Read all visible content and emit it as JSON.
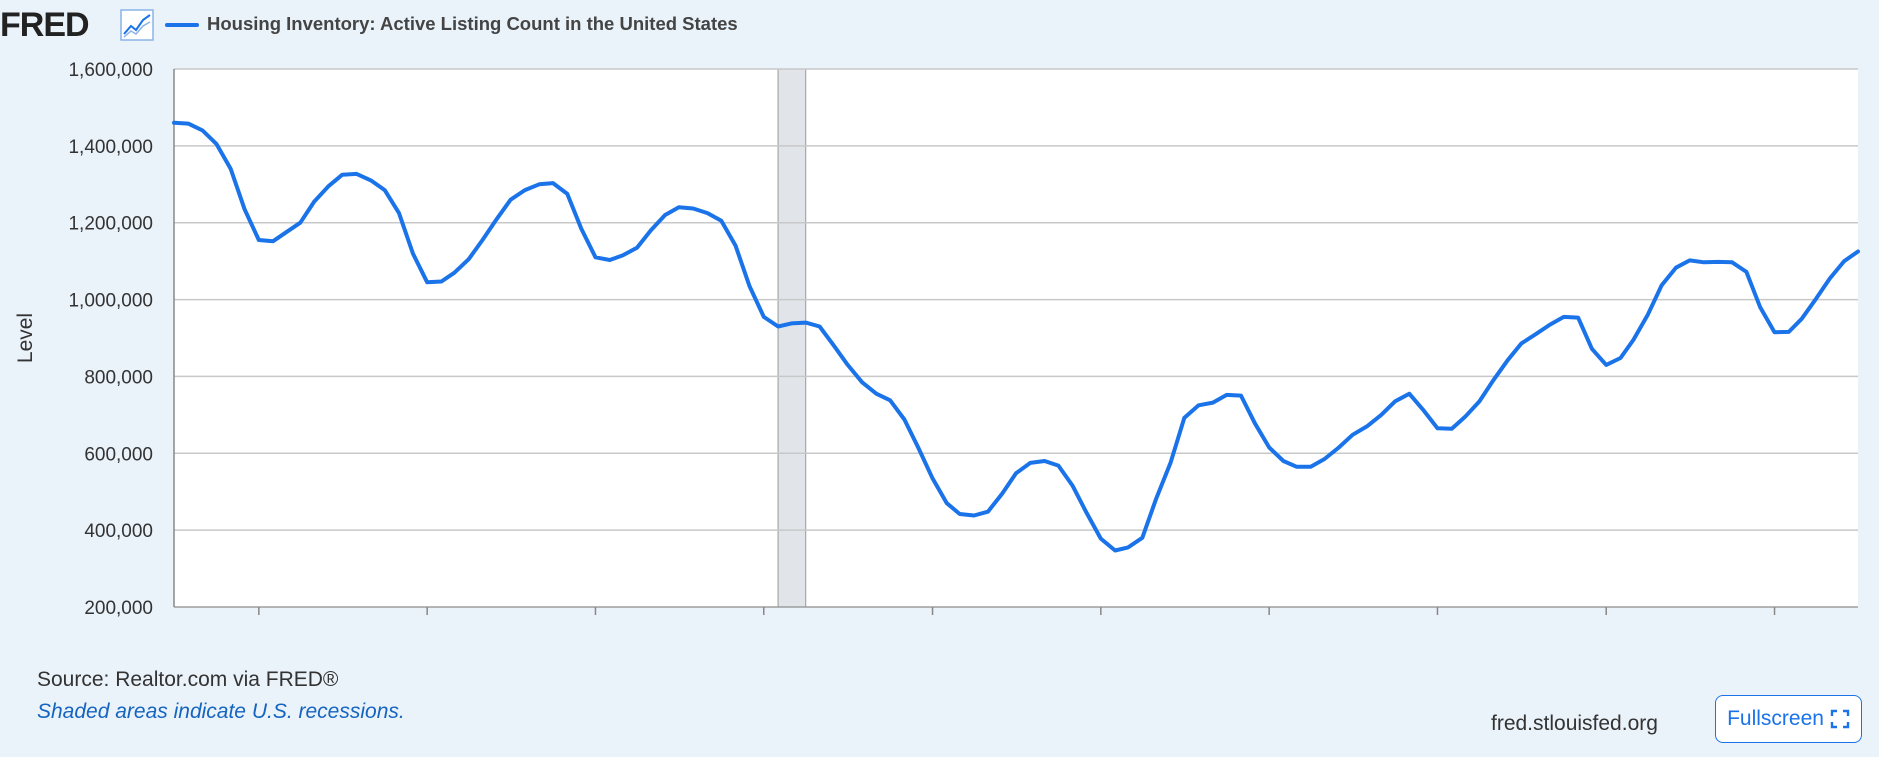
{
  "header": {
    "logo": "FRED",
    "logo_icon": "line-chart-icon",
    "series_title": "Housing Inventory: Active Listing Count in the United States"
  },
  "footer": {
    "source": "Source: Realtor.com via FRED®",
    "recession_note": "Shaded areas indicate U.S. recessions.",
    "site": "fred.stlouisfed.org",
    "fullscreen_label": "Fullscreen",
    "fullscreen_icon": "expand-icon"
  },
  "colors": {
    "line": "#1a73e8",
    "background": "#eaf2fa",
    "plot_background": "#ffffff",
    "recession": "#e1e5ea",
    "gridline": "#c8c8c8"
  },
  "chart_data": {
    "type": "line",
    "title": "Housing Inventory: Active Listing Count in the United States",
    "ylabel": "Level",
    "xlabel": "",
    "ylim": [
      200000,
      1600000
    ],
    "xlim": [
      "2016-07-01",
      "2026-07-01"
    ],
    "y_ticks": [
      200000,
      400000,
      600000,
      800000,
      1000000,
      1200000,
      1400000,
      1600000
    ],
    "y_tick_labels": [
      "200,000",
      "400,000",
      "600,000",
      "800,000",
      "1,000,000",
      "1,200,000",
      "1,400,000",
      "1,600,000"
    ],
    "x_ticks": [
      "2017",
      "2018",
      "2019",
      "2020",
      "2021",
      "2022",
      "2023",
      "2024",
      "2025",
      "2026"
    ],
    "grid": true,
    "recessions": [
      {
        "start": "2020-02-01",
        "end": "2020-04-01"
      }
    ],
    "series": [
      {
        "name": "Housing Inventory: Active Listing Count in the United States",
        "x": [
          "2016-07",
          "2016-08",
          "2016-09",
          "2016-10",
          "2016-11",
          "2016-12",
          "2017-01",
          "2017-02",
          "2017-03",
          "2017-04",
          "2017-05",
          "2017-06",
          "2017-07",
          "2017-08",
          "2017-09",
          "2017-10",
          "2017-11",
          "2017-12",
          "2018-01",
          "2018-02",
          "2018-03",
          "2018-04",
          "2018-05",
          "2018-06",
          "2018-07",
          "2018-08",
          "2018-09",
          "2018-10",
          "2018-11",
          "2018-12",
          "2019-01",
          "2019-02",
          "2019-03",
          "2019-04",
          "2019-05",
          "2019-06",
          "2019-07",
          "2019-08",
          "2019-09",
          "2019-10",
          "2019-11",
          "2019-12",
          "2020-01",
          "2020-02",
          "2020-03",
          "2020-04",
          "2020-05",
          "2020-06",
          "2020-07",
          "2020-08",
          "2020-09",
          "2020-10",
          "2020-11",
          "2020-12",
          "2021-01",
          "2021-02",
          "2021-03",
          "2021-04",
          "2021-05",
          "2021-06",
          "2021-07",
          "2021-08",
          "2021-09",
          "2021-10",
          "2021-11",
          "2021-12",
          "2022-01",
          "2022-02",
          "2022-03",
          "2022-04",
          "2022-05",
          "2022-06",
          "2022-07",
          "2022-08",
          "2022-09",
          "2022-10",
          "2022-11",
          "2022-12",
          "2023-01",
          "2023-02",
          "2023-03",
          "2023-04",
          "2023-05",
          "2023-06",
          "2023-07",
          "2023-08",
          "2023-09",
          "2023-10",
          "2023-11",
          "2023-12",
          "2024-01",
          "2024-02",
          "2024-03",
          "2024-04",
          "2024-05",
          "2024-06",
          "2024-07",
          "2024-08",
          "2024-09",
          "2024-10",
          "2024-11",
          "2024-12",
          "2025-01",
          "2025-02",
          "2025-03",
          "2025-04",
          "2025-05",
          "2025-06",
          "2025-07",
          "2025-08",
          "2025-09",
          "2025-10",
          "2025-11",
          "2025-12",
          "2026-01",
          "2026-02",
          "2026-03",
          "2026-04",
          "2026-05",
          "2026-06",
          "2026-07"
        ],
        "y": [
          1460000,
          1458000,
          1440000,
          1405000,
          1340000,
          1235000,
          1155000,
          1152000,
          1175000,
          1200000,
          1255000,
          1295000,
          1325000,
          1327000,
          1310000,
          1285000,
          1225000,
          1120000,
          1045000,
          1047000,
          1070000,
          1105000,
          1155000,
          1210000,
          1260000,
          1285000,
          1300000,
          1303000,
          1275000,
          1185000,
          1110000,
          1103000,
          1115000,
          1135000,
          1180000,
          1220000,
          1240000,
          1237000,
          1225000,
          1205000,
          1140000,
          1035000,
          955000,
          930000,
          938000,
          940000,
          930000,
          880000,
          830000,
          785000,
          755000,
          738000,
          688000,
          615000,
          535000,
          470000,
          442000,
          438000,
          448000,
          495000,
          548000,
          575000,
          580000,
          568000,
          515000,
          445000,
          378000,
          347000,
          355000,
          380000,
          482000,
          575000,
          692000,
          725000,
          732000,
          752000,
          750000,
          678000,
          615000,
          580000,
          565000,
          565000,
          585000,
          615000,
          648000,
          670000,
          700000,
          735000,
          755000,
          713000,
          665000,
          664000,
          695000,
          735000,
          790000,
          842000,
          886000,
          910000,
          935000,
          955000,
          953000,
          872000,
          830000,
          848000,
          895000,
          960000,
          1037000,
          1083000,
          1102000,
          1097000,
          1098000,
          1097000,
          1072000,
          980000,
          915000,
          916000,
          950000,
          1002000,
          1055000,
          1100000,
          1125000
        ]
      }
    ]
  }
}
